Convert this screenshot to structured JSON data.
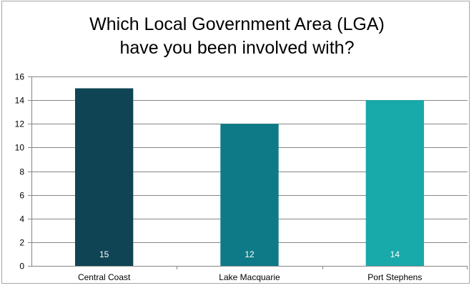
{
  "chart_data": {
    "type": "bar",
    "title_lines": [
      "Which Local Government Area (LGA)",
      "have you been involved with?"
    ],
    "categories": [
      "Central Coast",
      "Lake Macquarie",
      "Port Stephens"
    ],
    "values": [
      15,
      12,
      14
    ],
    "data_labels": [
      "15",
      "12",
      "14"
    ],
    "bar_colors": [
      "#0f4454",
      "#0e7a87",
      "#18a9ab"
    ],
    "ylim": [
      0,
      16
    ],
    "yticks": [
      0,
      2,
      4,
      6,
      8,
      10,
      12,
      14,
      16
    ],
    "grid": true,
    "grid_color": "#868686",
    "legend": "none"
  }
}
